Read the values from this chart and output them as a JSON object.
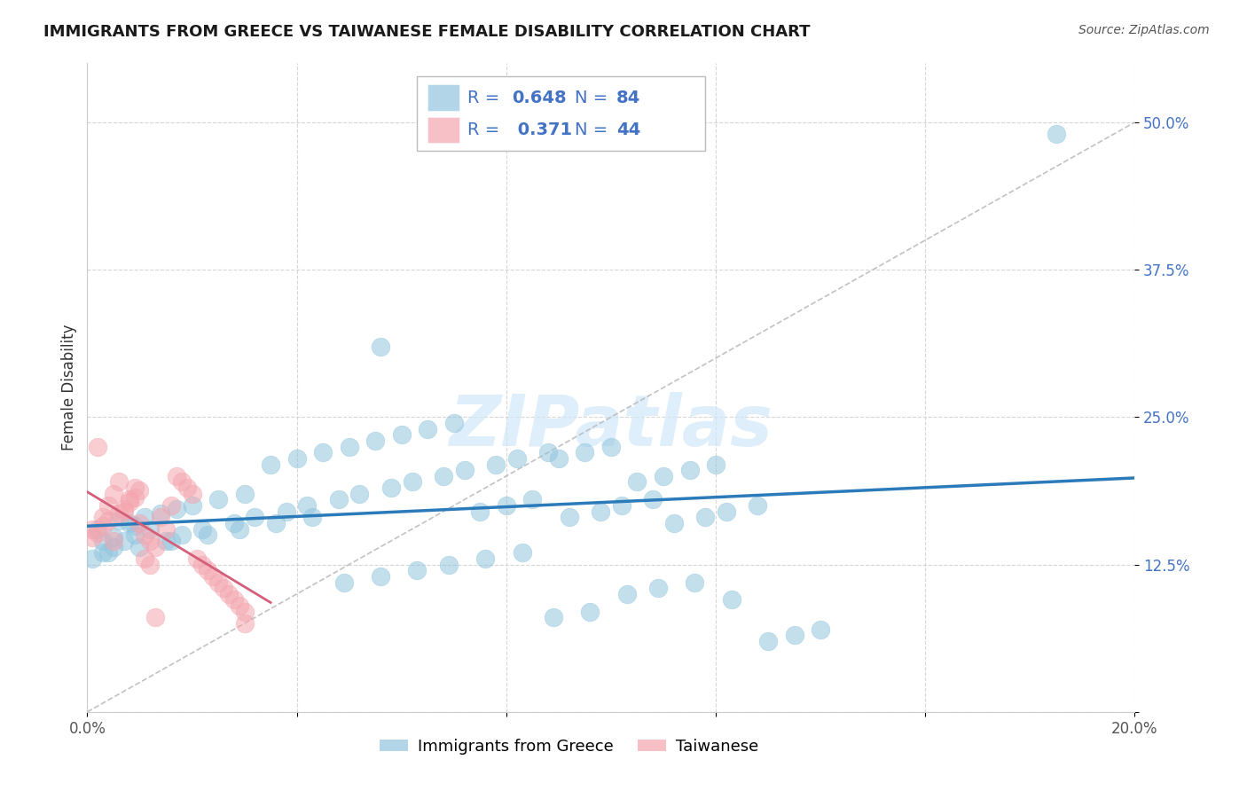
{
  "title": "IMMIGRANTS FROM GREECE VS TAIWANESE FEMALE DISABILITY CORRELATION CHART",
  "source": "Source: ZipAtlas.com",
  "ylabel": "Female Disability",
  "xlim": [
    0.0,
    0.2
  ],
  "ylim": [
    0.0,
    0.55
  ],
  "R_blue": 0.648,
  "N_blue": 84,
  "R_pink": 0.371,
  "N_pink": 44,
  "blue_color": "#92c5de",
  "pink_color": "#f4a6b0",
  "blue_line_color": "#2b7bba",
  "pink_line_color": "#d45f7a",
  "legend_text_color": "#4472c4",
  "watermark": "ZIPatlas",
  "blue_scatter_x": [
    0.002,
    0.005,
    0.008,
    0.003,
    0.006,
    0.009,
    0.011,
    0.014,
    0.017,
    0.02,
    0.025,
    0.03,
    0.035,
    0.04,
    0.045,
    0.05,
    0.055,
    0.06,
    0.065,
    0.07,
    0.075,
    0.08,
    0.085,
    0.09,
    0.095,
    0.1,
    0.105,
    0.11,
    0.115,
    0.12,
    0.001,
    0.003,
    0.005,
    0.007,
    0.009,
    0.012,
    0.015,
    0.018,
    0.022,
    0.028,
    0.032,
    0.038,
    0.042,
    0.048,
    0.052,
    0.058,
    0.062,
    0.068,
    0.072,
    0.078,
    0.082,
    0.088,
    0.092,
    0.098,
    0.102,
    0.108,
    0.112,
    0.118,
    0.122,
    0.128,
    0.004,
    0.01,
    0.016,
    0.023,
    0.029,
    0.036,
    0.043,
    0.049,
    0.056,
    0.063,
    0.069,
    0.076,
    0.083,
    0.089,
    0.096,
    0.103,
    0.109,
    0.116,
    0.123,
    0.056,
    0.13,
    0.135,
    0.14,
    0.185
  ],
  "blue_scatter_y": [
    0.155,
    0.148,
    0.16,
    0.145,
    0.162,
    0.158,
    0.165,
    0.168,
    0.172,
    0.175,
    0.18,
    0.185,
    0.21,
    0.215,
    0.22,
    0.225,
    0.23,
    0.235,
    0.24,
    0.245,
    0.17,
    0.175,
    0.18,
    0.215,
    0.22,
    0.225,
    0.195,
    0.2,
    0.205,
    0.21,
    0.13,
    0.135,
    0.14,
    0.145,
    0.15,
    0.155,
    0.145,
    0.15,
    0.155,
    0.16,
    0.165,
    0.17,
    0.175,
    0.18,
    0.185,
    0.19,
    0.195,
    0.2,
    0.205,
    0.21,
    0.215,
    0.22,
    0.165,
    0.17,
    0.175,
    0.18,
    0.16,
    0.165,
    0.17,
    0.175,
    0.135,
    0.14,
    0.145,
    0.15,
    0.155,
    0.16,
    0.165,
    0.11,
    0.115,
    0.12,
    0.125,
    0.13,
    0.135,
    0.08,
    0.085,
    0.1,
    0.105,
    0.11,
    0.095,
    0.31,
    0.06,
    0.065,
    0.07,
    0.49
  ],
  "pink_scatter_x": [
    0.001,
    0.002,
    0.003,
    0.004,
    0.005,
    0.006,
    0.007,
    0.008,
    0.009,
    0.01,
    0.011,
    0.012,
    0.013,
    0.014,
    0.015,
    0.016,
    0.017,
    0.018,
    0.019,
    0.02,
    0.021,
    0.022,
    0.023,
    0.024,
    0.025,
    0.026,
    0.027,
    0.028,
    0.029,
    0.03,
    0.001,
    0.002,
    0.003,
    0.004,
    0.005,
    0.006,
    0.007,
    0.008,
    0.009,
    0.01,
    0.011,
    0.012,
    0.013,
    0.03
  ],
  "pink_scatter_y": [
    0.155,
    0.225,
    0.165,
    0.175,
    0.185,
    0.195,
    0.17,
    0.18,
    0.19,
    0.16,
    0.15,
    0.145,
    0.14,
    0.165,
    0.155,
    0.175,
    0.2,
    0.195,
    0.19,
    0.185,
    0.13,
    0.125,
    0.12,
    0.115,
    0.11,
    0.105,
    0.1,
    0.095,
    0.09,
    0.085,
    0.148,
    0.152,
    0.158,
    0.162,
    0.145,
    0.168,
    0.172,
    0.178,
    0.182,
    0.188,
    0.13,
    0.125,
    0.08,
    0.075
  ]
}
